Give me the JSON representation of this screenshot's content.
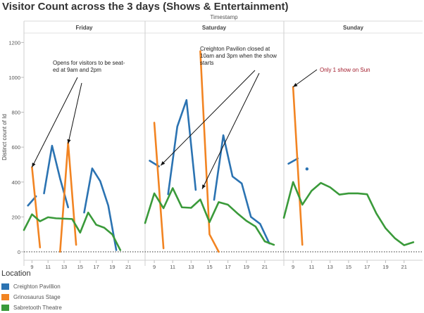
{
  "title": "Visitor Count across the 3 days (Shows & Entertainment)",
  "chart_data": {
    "type": "line",
    "column_header": "Timestamp",
    "panels": [
      "Friday",
      "Saturday",
      "Sunday"
    ],
    "ylabel": "Distinct count of Id",
    "ylim": [
      0,
      1250
    ],
    "yticks": [
      0,
      200,
      400,
      600,
      800,
      1000,
      1200
    ],
    "xticks": [
      9,
      11,
      13,
      15,
      17,
      19,
      21
    ],
    "panel_xrange": [
      8,
      23
    ],
    "grid": false,
    "legend_title": "Location",
    "legend_placement": "bottom-left",
    "series": [
      {
        "name": "Creighton Pavillion",
        "color": "#2b73b2",
        "segments": {
          "Friday": [
            [
              [
                8.5,
                265
              ],
              [
                9.5,
                318
              ]
            ],
            [
              [
                10.5,
                335
              ],
              [
                11.5,
                608
              ],
              [
                12.5,
                420
              ],
              [
                13.5,
                255
              ]
            ],
            [
              [
                15.5,
                225
              ],
              [
                16.5,
                478
              ],
              [
                17.5,
                405
              ],
              [
                18.5,
                265
              ],
              [
                19.5,
                10
              ]
            ]
          ],
          "Saturday": [
            [
              [
                8.5,
                522
              ],
              [
                9.5,
                490
              ]
            ],
            [
              [
                10.5,
                330
              ],
              [
                11.5,
                718
              ],
              [
                12.5,
                870
              ],
              [
                13.5,
                355
              ]
            ],
            [
              [
                15.5,
                298
              ],
              [
                16.5,
                668
              ],
              [
                17.5,
                432
              ],
              [
                18.5,
                392
              ],
              [
                19.5,
                200
              ],
              [
                20.5,
                160
              ],
              [
                21.5,
                48
              ]
            ]
          ],
          "Sunday": [
            [
              [
                8.5,
                505
              ],
              [
                9.5,
                535
              ]
            ],
            [
              [
                10.5,
                475
              ]
            ]
          ]
        }
      },
      {
        "name": "Grinosaurus Stage",
        "color": "#f28422",
        "segments": {
          "Friday": [
            [
              [
                9.0,
                485
              ],
              [
                10.0,
                25
              ]
            ],
            [
              [
                12.5,
                0
              ],
              [
                13.5,
                625
              ],
              [
                14.5,
                40
              ]
            ]
          ],
          "Saturday": [
            [
              [
                9.0,
                740
              ],
              [
                10.0,
                20
              ]
            ],
            [
              [
                14.0,
                1150
              ],
              [
                15.0,
                100
              ],
              [
                16.0,
                0
              ]
            ]
          ],
          "Sunday": [
            [
              [
                9.0,
                945
              ],
              [
                10.0,
                40
              ]
            ]
          ]
        }
      },
      {
        "name": "Sabretooth Theatre",
        "color": "#3a9a3a",
        "segments": {
          "Friday": [
            [
              [
                8.0,
                125
              ],
              [
                9.0,
                215
              ],
              [
                10.0,
                175
              ],
              [
                11.0,
                198
              ],
              [
                12.0,
                192
              ],
              [
                13.0,
                190
              ],
              [
                14.0,
                188
              ],
              [
                15.0,
                110
              ],
              [
                16.0,
                225
              ],
              [
                17.0,
                155
              ],
              [
                18.0,
                138
              ],
              [
                19.0,
                100
              ],
              [
                20.0,
                10
              ]
            ]
          ],
          "Saturday": [
            [
              [
                8.0,
                165
              ],
              [
                9.0,
                335
              ],
              [
                10.0,
                250
              ],
              [
                11.0,
                365
              ],
              [
                12.0,
                255
              ],
              [
                13.0,
                252
              ],
              [
                14.0,
                300
              ],
              [
                15.0,
                170
              ],
              [
                16.0,
                285
              ],
              [
                17.0,
                270
              ],
              [
                18.0,
                222
              ],
              [
                19.0,
                178
              ],
              [
                20.0,
                145
              ],
              [
                21.0,
                60
              ],
              [
                22.0,
                40
              ]
            ]
          ],
          "Sunday": [
            [
              [
                8.0,
                195
              ],
              [
                9.0,
                400
              ],
              [
                10.0,
                270
              ],
              [
                11.0,
                350
              ],
              [
                12.0,
                395
              ],
              [
                13.0,
                370
              ],
              [
                14.0,
                328
              ],
              [
                15.0,
                335
              ],
              [
                16.0,
                335
              ],
              [
                17.0,
                330
              ],
              [
                18.0,
                220
              ],
              [
                19.0,
                135
              ],
              [
                20.0,
                78
              ],
              [
                21.0,
                38
              ],
              [
                22.0,
                55
              ]
            ]
          ]
        }
      }
    ],
    "annotations": [
      {
        "panel": "Friday",
        "text": [
          "Opens for visitors to be seat-",
          "ed at 9am and 2pm"
        ],
        "color": "#222222",
        "arrow_targets": [
          [
            9.0,
            485
          ],
          [
            13.5,
            620
          ]
        ]
      },
      {
        "panel": "Saturday",
        "text": [
          "Creighton Pavilion closed at",
          "10am and 3pm when the show",
          "starts"
        ],
        "color": "#222222",
        "arrow_targets": [
          [
            9.7,
            495
          ],
          [
            14.2,
            360
          ]
        ]
      },
      {
        "panel": "Sunday",
        "text": [
          "Only 1 show on Sun"
        ],
        "color": "#a11a2a",
        "arrow_targets": [
          [
            9.0,
            945
          ]
        ]
      }
    ]
  }
}
